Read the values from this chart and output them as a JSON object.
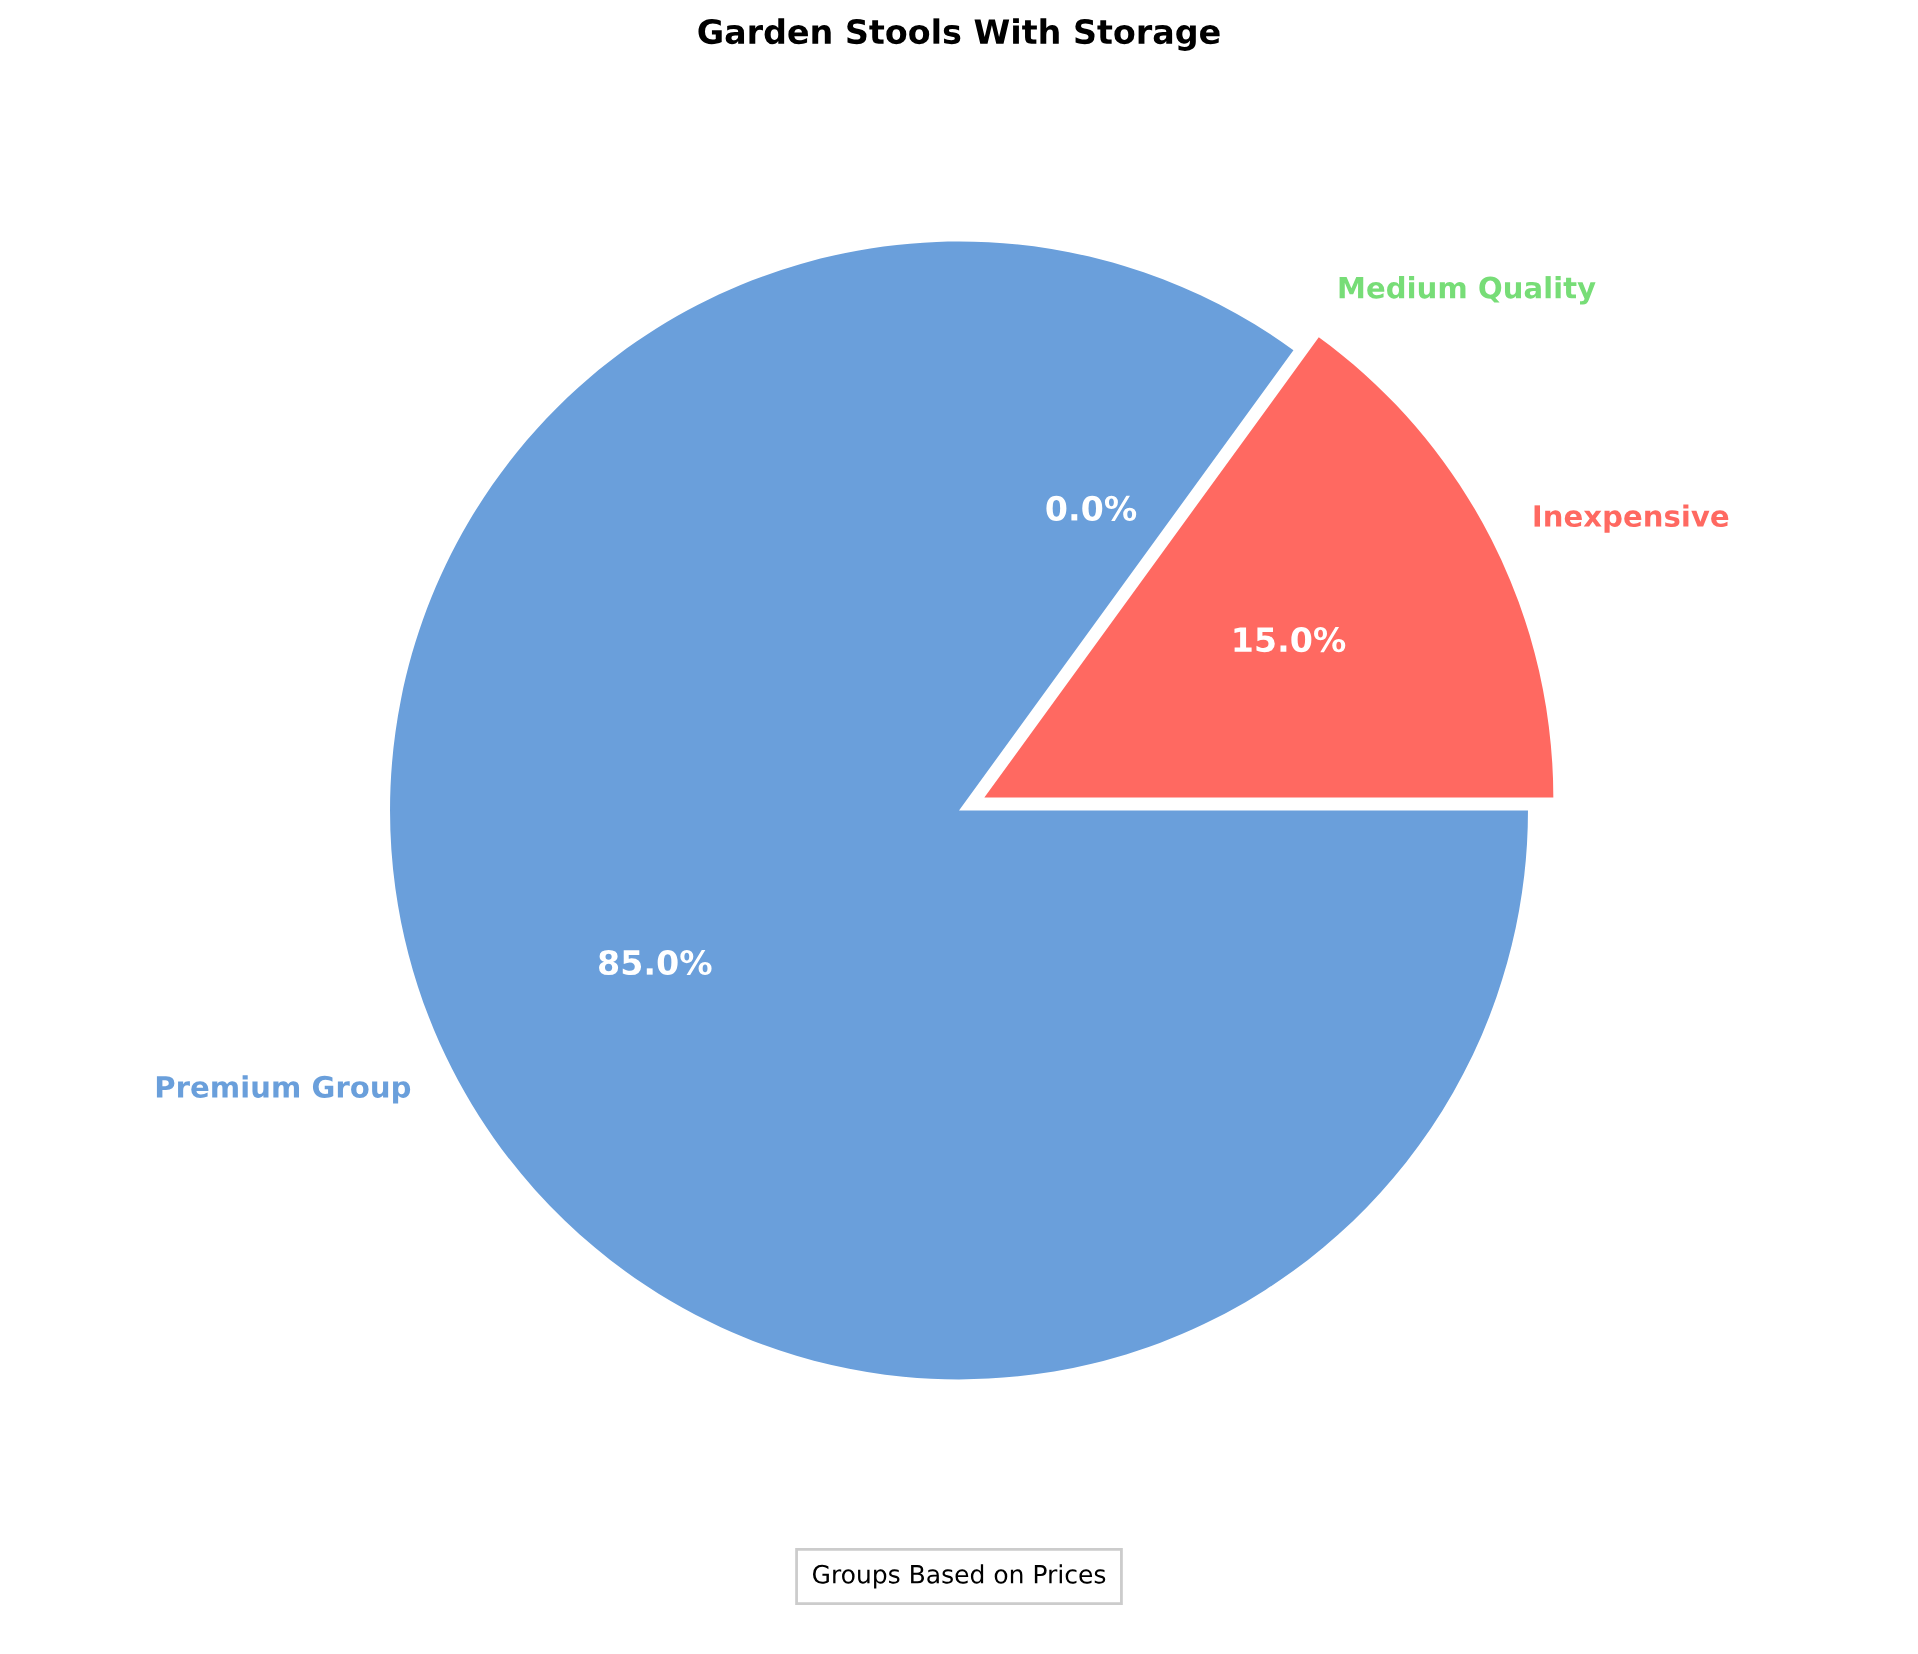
{
  "chart_data": {
    "type": "pie",
    "title": "Garden Stools With Storage",
    "categories": [
      "Inexpensive",
      "Medium Quality",
      "Premium Group"
    ],
    "values": [
      15.0,
      0.0,
      85.0
    ],
    "colors": [
      "#ff6961",
      "#77dd77",
      "#6a9fdb"
    ],
    "value_labels": [
      "15.0%",
      "0.0%",
      "85.0%"
    ],
    "legend_title": "Groups Based on Prices"
  }
}
